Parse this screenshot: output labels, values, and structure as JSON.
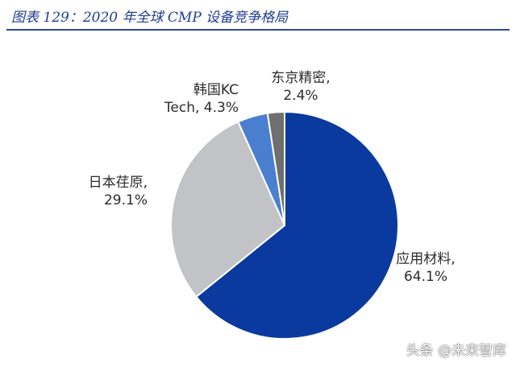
{
  "figure": {
    "title": "图表 129：2020 年全球 CMP 设备竞争格局"
  },
  "watermark": "头条 @未来智库",
  "colors": {
    "title": "#1f3e8f",
    "rule": "#2b4aa0",
    "label_text": "#2b2b2b"
  },
  "chart_data": {
    "type": "pie",
    "title": "",
    "slices": [
      {
        "label": "应用材料",
        "value": 64.1,
        "color": "#0a3a9e",
        "label_lines": [
          "应用材料,",
          "64.1%"
        ]
      },
      {
        "label": "日本荏原",
        "value": 29.1,
        "color": "#c2c3c7",
        "label_lines": [
          "日本荏原,",
          "29.1%"
        ]
      },
      {
        "label": "韩国KC Tech",
        "value": 4.3,
        "color": "#4a7fd0",
        "label_lines": [
          "韩国KC",
          "Tech, 4.3%"
        ]
      },
      {
        "label": "东京精密",
        "value": 2.4,
        "color": "#6f6f6f",
        "label_lines": [
          "东京精密,",
          "2.4%"
        ]
      }
    ],
    "start_angle_deg": 0,
    "direction": "clockwise",
    "legend": "none"
  }
}
